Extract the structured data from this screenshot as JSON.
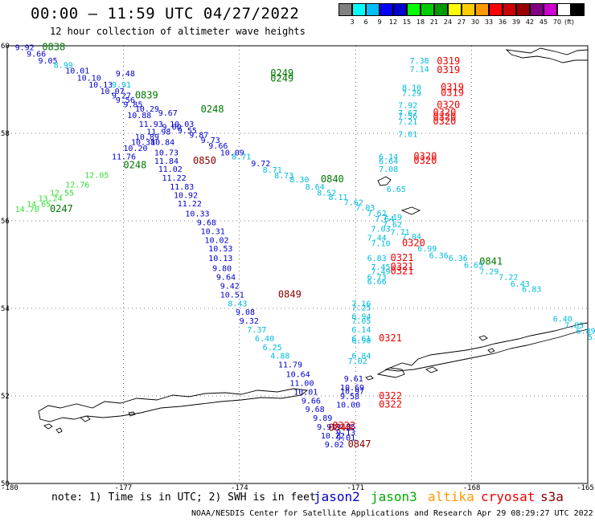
{
  "header": {
    "title": "00:00 – 11:59 UTC 04/27/2022",
    "subtitle": "12 hour collection of altimeter wave heights"
  },
  "scale": {
    "unit": "(ft)",
    "colors": [
      "#808080",
      "#00ffff",
      "#00bfff",
      "#0000ff",
      "#0000cd",
      "#00ff00",
      "#00cc00",
      "#009900",
      "#ffff00",
      "#ffcc00",
      "#ff9900",
      "#ff0000",
      "#cc0000",
      "#990000",
      "#800080",
      "#cc00cc",
      "#ffffff",
      "#000000"
    ],
    "labels": [
      "3",
      "6",
      "9",
      "12",
      "15",
      "18",
      "21",
      "24",
      "27",
      "30",
      "33",
      "36",
      "39",
      "42",
      "45",
      "70"
    ]
  },
  "map": {
    "lat_labels": [
      "60",
      "58",
      "56",
      "54",
      "52",
      "50"
    ],
    "lon_labels": [
      "-180",
      "-177",
      "-174",
      "-171",
      "-168",
      "-165"
    ],
    "colors": {
      "cyan": "#00bbdd",
      "blue": "#0000cc",
      "green": "#007700",
      "lightgreen": "#33dd33",
      "red": "#ee0000",
      "darkred": "#880000"
    },
    "values": [
      {
        "t": "9.92",
        "c": "blue",
        "lon": -179.8,
        "lat": 59.9
      },
      {
        "t": "0838",
        "c": "green",
        "lon": -179.1,
        "lat": 59.9
      },
      {
        "t": "9.66",
        "c": "blue",
        "lon": -179.5,
        "lat": 59.75
      },
      {
        "t": "9.05",
        "c": "blue",
        "lon": -179.2,
        "lat": 59.6
      },
      {
        "t": "8.99",
        "c": "cyan",
        "lon": -178.8,
        "lat": 59.5
      },
      {
        "t": "10.01",
        "c": "blue",
        "lon": -178.5,
        "lat": 59.37
      },
      {
        "t": "10.10",
        "c": "blue",
        "lon": -178.2,
        "lat": 59.2
      },
      {
        "t": "10.13",
        "c": "blue",
        "lon": -177.9,
        "lat": 59.05
      },
      {
        "t": "9.48",
        "c": "blue",
        "lon": -177.2,
        "lat": 59.3
      },
      {
        "t": "10.07",
        "c": "blue",
        "lon": -177.6,
        "lat": 58.9
      },
      {
        "t": "9.91",
        "c": "cyan",
        "lon": -177.3,
        "lat": 59.05
      },
      {
        "t": "9.27",
        "c": "blue",
        "lon": -177.3,
        "lat": 58.8
      },
      {
        "t": "0839",
        "c": "green",
        "lon": -176.7,
        "lat": 58.8
      },
      {
        "t": "9.56",
        "c": "blue",
        "lon": -177.2,
        "lat": 58.7
      },
      {
        "t": "9.85",
        "c": "blue",
        "lon": -177.0,
        "lat": 58.6
      },
      {
        "t": "10.29",
        "c": "blue",
        "lon": -176.7,
        "lat": 58.5
      },
      {
        "t": "10.88",
        "c": "blue",
        "lon": -176.9,
        "lat": 58.35
      },
      {
        "t": "9.67",
        "c": "blue",
        "lon": -176.1,
        "lat": 58.4
      },
      {
        "t": "11.93",
        "c": "blue",
        "lon": -176.6,
        "lat": 58.15
      },
      {
        "t": "10.03",
        "c": "blue",
        "lon": -175.8,
        "lat": 58.15
      },
      {
        "t": "9.00",
        "c": "blue",
        "lon": -176.0,
        "lat": 58.08
      },
      {
        "t": "11.98",
        "c": "blue",
        "lon": -176.4,
        "lat": 57.97
      },
      {
        "t": "9.55",
        "c": "blue",
        "lon": -175.6,
        "lat": 58.0
      },
      {
        "t": "10.89",
        "c": "blue",
        "lon": -176.7,
        "lat": 57.85
      },
      {
        "t": "9.87",
        "c": "blue",
        "lon": -175.3,
        "lat": 57.9
      },
      {
        "t": "10.38",
        "c": "blue",
        "lon": -176.8,
        "lat": 57.73
      },
      {
        "t": "10.84",
        "c": "blue",
        "lon": -176.3,
        "lat": 57.73
      },
      {
        "t": "9.73",
        "c": "blue",
        "lon": -175.0,
        "lat": 57.78
      },
      {
        "t": "10.20",
        "c": "blue",
        "lon": -177.0,
        "lat": 57.6
      },
      {
        "t": "9.66",
        "c": "blue",
        "lon": -174.8,
        "lat": 57.65
      },
      {
        "t": "10.73",
        "c": "blue",
        "lon": -176.2,
        "lat": 57.5
      },
      {
        "t": "10.09",
        "c": "blue",
        "lon": -174.5,
        "lat": 57.5
      },
      {
        "t": "11.76",
        "c": "blue",
        "lon": -177.3,
        "lat": 57.4
      },
      {
        "t": "8.71",
        "c": "cyan",
        "lon": -174.2,
        "lat": 57.4
      },
      {
        "t": "11.84",
        "c": "blue",
        "lon": -176.2,
        "lat": 57.3
      },
      {
        "t": "0850",
        "c": "darkred",
        "lon": -175.2,
        "lat": 57.3
      },
      {
        "t": "9.72",
        "c": "blue",
        "lon": -173.7,
        "lat": 57.25
      },
      {
        "t": "0248",
        "c": "green",
        "lon": -177.0,
        "lat": 57.2
      },
      {
        "t": "11.02",
        "c": "blue",
        "lon": -176.1,
        "lat": 57.12
      },
      {
        "t": "8.71",
        "c": "cyan",
        "lon": -173.4,
        "lat": 57.1
      },
      {
        "t": "8.73",
        "c": "cyan",
        "lon": -173.1,
        "lat": 56.97
      },
      {
        "t": "11.22",
        "c": "blue",
        "lon": -176.0,
        "lat": 56.92
      },
      {
        "t": "8.30",
        "c": "cyan",
        "lon": -172.7,
        "lat": 56.88
      },
      {
        "t": "0840",
        "c": "green",
        "lon": -171.9,
        "lat": 56.88
      },
      {
        "t": "11.83",
        "c": "blue",
        "lon": -175.8,
        "lat": 56.72
      },
      {
        "t": "8.64",
        "c": "cyan",
        "lon": -172.3,
        "lat": 56.72
      },
      {
        "t": "8.52",
        "c": "cyan",
        "lon": -172.0,
        "lat": 56.58
      },
      {
        "t": "10.92",
        "c": "blue",
        "lon": -175.7,
        "lat": 56.52
      },
      {
        "t": "8.11",
        "c": "cyan",
        "lon": -171.7,
        "lat": 56.48
      },
      {
        "t": "11.22",
        "c": "blue",
        "lon": -175.6,
        "lat": 56.33
      },
      {
        "t": "7.62",
        "c": "cyan",
        "lon": -171.3,
        "lat": 56.36
      },
      {
        "t": "7.03",
        "c": "cyan",
        "lon": -171.0,
        "lat": 56.24
      },
      {
        "t": "10.33",
        "c": "blue",
        "lon": -175.4,
        "lat": 56.1
      },
      {
        "t": "7.62",
        "c": "cyan",
        "lon": -170.7,
        "lat": 56.11
      },
      {
        "t": "7.64",
        "c": "cyan",
        "lon": -170.5,
        "lat": 55.98
      },
      {
        "t": "7.19",
        "c": "cyan",
        "lon": -170.3,
        "lat": 56.02
      },
      {
        "t": "9.68",
        "c": "blue",
        "lon": -175.1,
        "lat": 55.9
      },
      {
        "t": "7.62",
        "c": "cyan",
        "lon": -170.3,
        "lat": 55.85
      },
      {
        "t": "10.31",
        "c": "blue",
        "lon": -175.0,
        "lat": 55.7
      },
      {
        "t": "7.03",
        "c": "cyan",
        "lon": -170.6,
        "lat": 55.75
      },
      {
        "t": "7.71",
        "c": "cyan",
        "lon": -170.1,
        "lat": 55.68
      },
      {
        "t": "10.02",
        "c": "blue",
        "lon": -174.9,
        "lat": 55.5
      },
      {
        "t": "7.44",
        "c": "cyan",
        "lon": -170.7,
        "lat": 55.55
      },
      {
        "t": "7.04",
        "c": "cyan",
        "lon": -169.8,
        "lat": 55.58
      },
      {
        "t": "7.10",
        "c": "cyan",
        "lon": -170.6,
        "lat": 55.42
      },
      {
        "t": "0320",
        "c": "red",
        "lon": -169.8,
        "lat": 55.42
      },
      {
        "t": "10.53",
        "c": "blue",
        "lon": -174.8,
        "lat": 55.3
      },
      {
        "t": "6.99",
        "c": "cyan",
        "lon": -169.4,
        "lat": 55.3
      },
      {
        "t": "6.36",
        "c": "cyan",
        "lon": -169.1,
        "lat": 55.15
      },
      {
        "t": "10.13",
        "c": "blue",
        "lon": -174.8,
        "lat": 55.08
      },
      {
        "t": "6.83",
        "c": "cyan",
        "lon": -170.7,
        "lat": 55.08
      },
      {
        "t": "0321",
        "c": "red",
        "lon": -170.1,
        "lat": 55.08
      },
      {
        "t": "6.36",
        "c": "cyan",
        "lon": -168.6,
        "lat": 55.08
      },
      {
        "t": "0841",
        "c": "green",
        "lon": -167.8,
        "lat": 55.0
      },
      {
        "t": "6.65",
        "c": "cyan",
        "lon": -168.2,
        "lat": 54.93
      },
      {
        "t": "9.80",
        "c": "blue",
        "lon": -174.7,
        "lat": 54.85
      },
      {
        "t": "7.45",
        "c": "cyan",
        "lon": -170.6,
        "lat": 54.88
      },
      {
        "t": "0321",
        "c": "red",
        "lon": -170.1,
        "lat": 54.88
      },
      {
        "t": "7.49",
        "c": "cyan",
        "lon": -170.6,
        "lat": 54.78
      },
      {
        "t": "0321",
        "c": "red",
        "lon": -170.1,
        "lat": 54.78
      },
      {
        "t": "7.29",
        "c": "cyan",
        "lon": -167.8,
        "lat": 54.78
      },
      {
        "t": "9.64",
        "c": "blue",
        "lon": -174.6,
        "lat": 54.65
      },
      {
        "t": "6.73",
        "c": "cyan",
        "lon": -170.7,
        "lat": 54.65
      },
      {
        "t": "7.22",
        "c": "cyan",
        "lon": -167.3,
        "lat": 54.65
      },
      {
        "t": "6.66",
        "c": "cyan",
        "lon": -170.7,
        "lat": 54.55
      },
      {
        "t": "9.42",
        "c": "blue",
        "lon": -174.5,
        "lat": 54.45
      },
      {
        "t": "6.43",
        "c": "cyan",
        "lon": -167.0,
        "lat": 54.5
      },
      {
        "t": "10.51",
        "c": "blue",
        "lon": -174.5,
        "lat": 54.25
      },
      {
        "t": "0849",
        "c": "darkred",
        "lon": -173.0,
        "lat": 54.25
      },
      {
        "t": "6.83",
        "c": "cyan",
        "lon": -166.7,
        "lat": 54.38
      },
      {
        "t": "8.43",
        "c": "cyan",
        "lon": -174.3,
        "lat": 54.05
      },
      {
        "t": "7.16",
        "c": "cyan",
        "lon": -171.1,
        "lat": 54.05
      },
      {
        "t": "7.25",
        "c": "cyan",
        "lon": -171.1,
        "lat": 53.95
      },
      {
        "t": "9.08",
        "c": "blue",
        "lon": -174.1,
        "lat": 53.85
      },
      {
        "t": "6.94",
        "c": "cyan",
        "lon": -171.1,
        "lat": 53.75
      },
      {
        "t": "9.32",
        "c": "blue",
        "lon": -174.0,
        "lat": 53.65
      },
      {
        "t": "7.05",
        "c": "cyan",
        "lon": -171.1,
        "lat": 53.65
      },
      {
        "t": "7.37",
        "c": "cyan",
        "lon": -173.8,
        "lat": 53.45
      },
      {
        "t": "6.14",
        "c": "cyan",
        "lon": -171.1,
        "lat": 53.45
      },
      {
        "t": "6.40",
        "c": "cyan",
        "lon": -173.6,
        "lat": 53.25
      },
      {
        "t": "6.61",
        "c": "cyan",
        "lon": -171.1,
        "lat": 53.25
      },
      {
        "t": "6.90",
        "c": "cyan",
        "lon": -171.1,
        "lat": 53.2
      },
      {
        "t": "0321",
        "c": "red",
        "lon": -170.4,
        "lat": 53.25
      },
      {
        "t": "6.25",
        "c": "cyan",
        "lon": -173.4,
        "lat": 53.05
      },
      {
        "t": "4.88",
        "c": "cyan",
        "lon": -173.2,
        "lat": 52.85
      },
      {
        "t": "6.84",
        "c": "cyan",
        "lon": -171.1,
        "lat": 52.85
      },
      {
        "t": "7.02",
        "c": "cyan",
        "lon": -171.2,
        "lat": 52.73
      },
      {
        "t": "11.79",
        "c": "blue",
        "lon": -173.0,
        "lat": 52.65
      },
      {
        "t": "10.64",
        "c": "blue",
        "lon": -172.8,
        "lat": 52.43
      },
      {
        "t": "9.61",
        "c": "blue",
        "lon": -171.3,
        "lat": 52.33
      },
      {
        "t": "11.00",
        "c": "blue",
        "lon": -172.7,
        "lat": 52.23
      },
      {
        "t": "10.69",
        "c": "blue",
        "lon": -171.4,
        "lat": 52.13
      },
      {
        "t": "10.01",
        "c": "blue",
        "lon": -172.6,
        "lat": 52.03
      },
      {
        "t": "10.97",
        "c": "blue",
        "lon": -171.4,
        "lat": 52.05
      },
      {
        "t": "9.58",
        "c": "blue",
        "lon": -171.4,
        "lat": 51.93
      },
      {
        "t": "0322",
        "c": "red",
        "lon": -170.4,
        "lat": 51.93
      },
      {
        "t": "9.66",
        "c": "blue",
        "lon": -172.4,
        "lat": 51.83
      },
      {
        "t": "10.00",
        "c": "blue",
        "lon": -171.5,
        "lat": 51.73
      },
      {
        "t": "0322",
        "c": "red",
        "lon": -170.4,
        "lat": 51.73
      },
      {
        "t": "9.68",
        "c": "blue",
        "lon": -172.3,
        "lat": 51.63
      },
      {
        "t": "9.89",
        "c": "blue",
        "lon": -172.1,
        "lat": 51.43
      },
      {
        "t": "9.35",
        "c": "blue",
        "lon": -171.5,
        "lat": 51.23
      },
      {
        "t": "9.91",
        "c": "blue",
        "lon": -172.0,
        "lat": 51.23
      },
      {
        "t": "0848",
        "c": "darkred",
        "lon": -171.7,
        "lat": 51.2
      },
      {
        "t": "0322",
        "c": "red",
        "lon": -171.6,
        "lat": 51.25
      },
      {
        "t": "9.13",
        "c": "blue",
        "lon": -171.5,
        "lat": 51.1
      },
      {
        "t": "10.22",
        "c": "blue",
        "lon": -171.9,
        "lat": 51.03
      },
      {
        "t": "9.01",
        "c": "blue",
        "lon": -171.5,
        "lat": 50.98
      },
      {
        "t": "9.02",
        "c": "blue",
        "lon": -171.8,
        "lat": 50.83
      },
      {
        "t": "0847",
        "c": "darkred",
        "lon": -171.2,
        "lat": 50.83
      },
      {
        "t": "7.38",
        "c": "cyan",
        "lon": -169.6,
        "lat": 59.6
      },
      {
        "t": "0319",
        "c": "red",
        "lon": -168.9,
        "lat": 59.58
      },
      {
        "t": "7.14",
        "c": "cyan",
        "lon": -169.6,
        "lat": 59.4
      },
      {
        "t": "0319",
        "c": "red",
        "lon": -168.9,
        "lat": 59.38
      },
      {
        "t": "8.10",
        "c": "cyan",
        "lon": -169.8,
        "lat": 58.98
      },
      {
        "t": "0319",
        "c": "red",
        "lon": -168.8,
        "lat": 58.98
      },
      {
        "t": "7.29",
        "c": "cyan",
        "lon": -169.8,
        "lat": 58.85
      },
      {
        "t": "0319",
        "c": "red",
        "lon": -168.8,
        "lat": 58.85
      },
      {
        "t": "7.92",
        "c": "cyan",
        "lon": -169.9,
        "lat": 58.58
      },
      {
        "t": "0320",
        "c": "red",
        "lon": -168.9,
        "lat": 58.58
      },
      {
        "t": "7.67",
        "c": "cyan",
        "lon": -169.9,
        "lat": 58.4
      },
      {
        "t": "0320",
        "c": "red",
        "lon": -169.0,
        "lat": 58.4
      },
      {
        "t": "7.56",
        "c": "cyan",
        "lon": -169.9,
        "lat": 58.33
      },
      {
        "t": "0320",
        "c": "red",
        "lon": -169.0,
        "lat": 58.3
      },
      {
        "t": "7.21",
        "c": "cyan",
        "lon": -169.9,
        "lat": 58.2
      },
      {
        "t": "0320",
        "c": "red",
        "lon": -169.0,
        "lat": 58.2
      },
      {
        "t": "7.01",
        "c": "cyan",
        "lon": -169.9,
        "lat": 57.92
      },
      {
        "t": "6.14",
        "c": "cyan",
        "lon": -170.4,
        "lat": 57.4
      },
      {
        "t": "0320",
        "c": "red",
        "lon": -169.5,
        "lat": 57.4
      },
      {
        "t": "6.64",
        "c": "cyan",
        "lon": -170.4,
        "lat": 57.3
      },
      {
        "t": "0320",
        "c": "red",
        "lon": -169.5,
        "lat": 57.3
      },
      {
        "t": "7.08",
        "c": "cyan",
        "lon": -170.4,
        "lat": 57.12
      },
      {
        "t": "6.65",
        "c": "cyan",
        "lon": -170.2,
        "lat": 56.66
      },
      {
        "t": "0249",
        "c": "green",
        "lon": -173.2,
        "lat": 59.3
      },
      {
        "t": "0249",
        "c": "green",
        "lon": -173.2,
        "lat": 59.18
      },
      {
        "t": "0248",
        "c": "green",
        "lon": -175.0,
        "lat": 58.48
      },
      {
        "t": "0247",
        "c": "green",
        "lon": -178.9,
        "lat": 56.2
      },
      {
        "t": "14.70",
        "c": "lightgreen",
        "lon": -179.8,
        "lat": 56.2
      },
      {
        "t": "14.65",
        "c": "lightgreen",
        "lon": -179.5,
        "lat": 56.32
      },
      {
        "t": "13.24",
        "c": "lightgreen",
        "lon": -179.2,
        "lat": 56.45
      },
      {
        "t": "12.55",
        "c": "lightgreen",
        "lon": -178.9,
        "lat": 56.58
      },
      {
        "t": "12.76",
        "c": "lightgreen",
        "lon": -178.5,
        "lat": 56.76
      },
      {
        "t": "12.05",
        "c": "lightgreen",
        "lon": -178.0,
        "lat": 56.98
      },
      {
        "t": "6.40",
        "c": "cyan",
        "lon": -165.9,
        "lat": 53.7
      },
      {
        "t": "7.85",
        "c": "cyan",
        "lon": -165.6,
        "lat": 53.55
      },
      {
        "t": "6.89",
        "c": "cyan",
        "lon": -165.3,
        "lat": 53.42
      },
      {
        "t": "5.81",
        "c": "cyan",
        "lon": -165.0,
        "lat": 53.28
      },
      {
        "t": "6.50",
        "c": "cyan",
        "lon": -164.7,
        "lat": 53.1
      },
      {
        "t": "7.32",
        "c": "cyan",
        "lon": -164.4,
        "lat": 52.98
      },
      {
        "t": "6.11",
        "c": "cyan",
        "lon": -164.4,
        "lat": 52.85
      }
    ]
  },
  "footer": {
    "note": "note: 1) Time is in UTC; 2) SWH is in feet",
    "legend": [
      {
        "label": "jason2",
        "color": "#0000cc"
      },
      {
        "label": "jason3",
        "color": "#00aa00"
      },
      {
        "label": "altika",
        "color": "#ff9900"
      },
      {
        "label": "cryosat",
        "color": "#ee0000"
      },
      {
        "label": "s3a",
        "color": "#880000"
      }
    ],
    "credit": "NOAA/NESDIS Center for Satellite Applications and Research   Apr 29 08:29:27 UTC 2022"
  }
}
